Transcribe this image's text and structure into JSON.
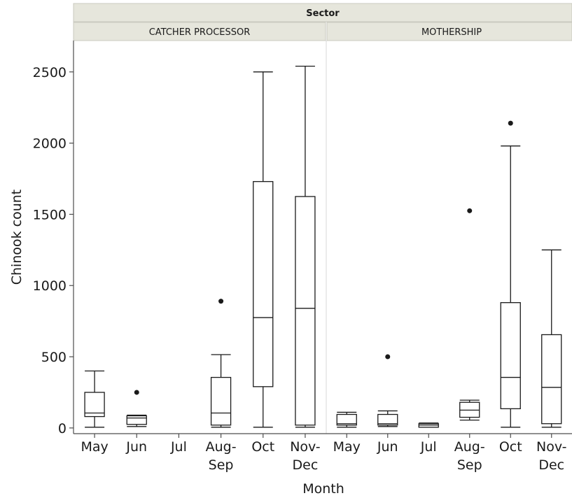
{
  "chart_data": {
    "type": "boxplot",
    "facet_title": "Sector",
    "panels": [
      {
        "name": "CATCHER PROCESSOR",
        "boxes": [
          {
            "category": "May",
            "min": 5,
            "q1": 80,
            "median": 105,
            "q3": 250,
            "max": 400,
            "outliers": []
          },
          {
            "category": "Jun",
            "min": 10,
            "q1": 25,
            "median": 70,
            "q3": 85,
            "max": 90,
            "outliers": [
              250
            ]
          },
          {
            "category": "Jul",
            "min": null,
            "q1": null,
            "median": null,
            "q3": null,
            "max": null,
            "outliers": []
          },
          {
            "category": "Aug-Sep",
            "min": 5,
            "q1": 20,
            "median": 105,
            "q3": 355,
            "max": 515,
            "outliers": [
              890
            ]
          },
          {
            "category": "Oct",
            "min": 5,
            "q1": 290,
            "median": 775,
            "q3": 1730,
            "max": 2500,
            "outliers": []
          },
          {
            "category": "Nov-Dec",
            "min": 5,
            "q1": 20,
            "median": 840,
            "q3": 1625,
            "max": 2540,
            "outliers": []
          }
        ]
      },
      {
        "name": "MOTHERSHIP",
        "boxes": [
          {
            "category": "May",
            "min": 5,
            "q1": 20,
            "median": 30,
            "q3": 95,
            "max": 110,
            "outliers": []
          },
          {
            "category": "Jun",
            "min": 10,
            "q1": 20,
            "median": 30,
            "q3": 95,
            "max": 120,
            "outliers": [
              500
            ]
          },
          {
            "category": "Jul",
            "min": 5,
            "q1": 5,
            "median": 20,
            "q3": 30,
            "max": 35,
            "outliers": []
          },
          {
            "category": "Aug-Sep",
            "min": 55,
            "q1": 75,
            "median": 125,
            "q3": 180,
            "max": 195,
            "outliers": [
              1525
            ]
          },
          {
            "category": "Oct",
            "min": 5,
            "q1": 135,
            "median": 355,
            "q3": 880,
            "max": 1980,
            "outliers": [
              2140
            ]
          },
          {
            "category": "Nov-Dec",
            "min": 5,
            "q1": 30,
            "median": 285,
            "q3": 655,
            "max": 1250,
            "outliers": []
          }
        ]
      }
    ],
    "categories": [
      "May",
      "Jun",
      "Jul",
      "Aug-Sep",
      "Oct",
      "Nov-Dec"
    ],
    "category_labels": [
      [
        "May"
      ],
      [
        "Jun"
      ],
      [
        "Jul"
      ],
      [
        "Aug-",
        "Sep"
      ],
      [
        "Oct"
      ],
      [
        "Nov-",
        "Dec"
      ]
    ],
    "xlabel": "Month",
    "ylabel": "Chinook count",
    "yticks": [
      0,
      500,
      1000,
      1500,
      2000,
      2500
    ],
    "ylim": [
      -40,
      2720
    ],
    "grid": false
  },
  "colors": {
    "strip_fill": "#e6e6dc",
    "strip_border": "#c9c9bf",
    "axis": "#4d4d4d",
    "box_stroke": "#1a1a1a",
    "divider": "#d9d9d9",
    "text": "#1a1a1a"
  }
}
